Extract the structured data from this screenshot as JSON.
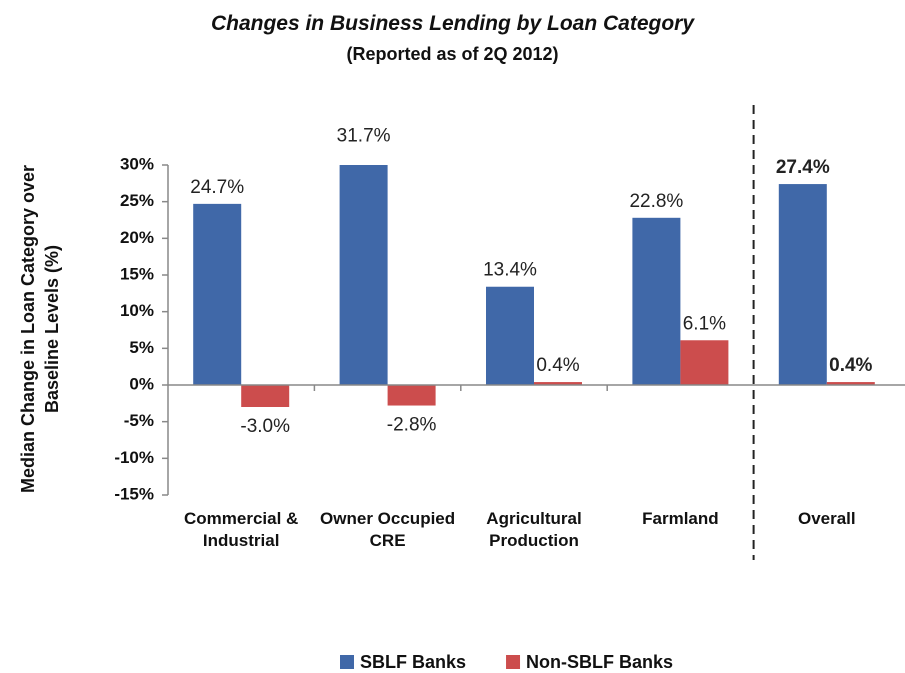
{
  "chart_data": {
    "type": "bar",
    "title": "Changes in Business Lending by Loan Category",
    "subtitle": "(Reported as of 2Q 2012)",
    "y_label": "Median Change in Loan Category over Baseline Levels (%)",
    "categories": [
      "Commercial & Industrial",
      "Owner Occupied CRE",
      "Agricultural Production",
      "Farmland",
      "Overall"
    ],
    "series": [
      {
        "name": "SBLF Banks",
        "color": "#4068a8",
        "values": [
          24.7,
          31.7,
          13.4,
          22.8,
          27.4
        ],
        "value_labels": [
          "24.7%",
          "31.7%",
          "13.4%",
          "22.8%",
          "27.4%"
        ]
      },
      {
        "name": "Non-SBLF Banks",
        "color": "#cc4d4d",
        "values": [
          -3.0,
          -2.8,
          0.4,
          6.1,
          0.4
        ],
        "value_labels": [
          "-3.0%",
          "-2.8%",
          "0.4%",
          "6.1%",
          "0.4%"
        ]
      }
    ],
    "ylim": [
      -15,
      30
    ],
    "yticks": [
      {
        "value": -15,
        "label": "-15%"
      },
      {
        "value": -10,
        "label": "-10%"
      },
      {
        "value": -5,
        "label": "-5%"
      },
      {
        "value": 0,
        "label": "0%"
      },
      {
        "value": 5,
        "label": "5%"
      },
      {
        "value": 10,
        "label": "10%"
      },
      {
        "value": 15,
        "label": "15%"
      },
      {
        "value": 20,
        "label": "20%"
      },
      {
        "value": 25,
        "label": "25%"
      },
      {
        "value": 30,
        "label": "30%"
      }
    ],
    "legend": "bottom"
  }
}
